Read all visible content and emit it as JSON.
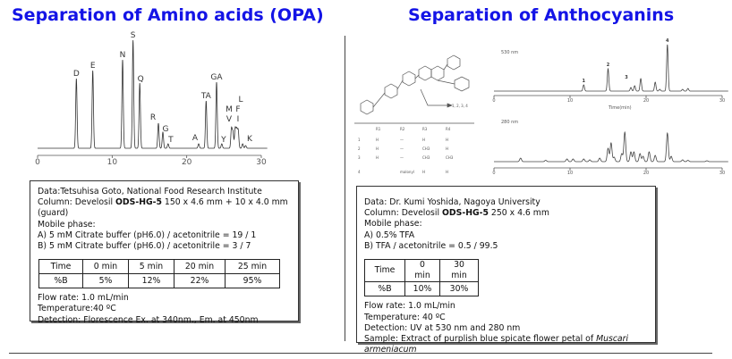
{
  "titles": {
    "left": "Separation of Amino acids (OPA)",
    "right": "Separation of Anthocyanins"
  },
  "left_box": {
    "data": "Data:Tetsuhisa Goto, National Food Research Institute",
    "column_prefix": "Column: Develosil ",
    "column_bold": "ODS-HG-5",
    "column_suffix": " 150 x 4.6 mm + 10 x 4.0 mm (guard)",
    "mobile": "Mobile phase:",
    "a": "A) 5 mM Citrate buffer (pH6.0) / acetonitrile = 19 / 1",
    "b": "B) 5 mM Citrate buffer (pH6.0) / acetonitrile = 3 / 7",
    "table": [
      [
        "Time",
        "0 min",
        "5 min",
        "20 min",
        "25 min"
      ],
      [
        "%B",
        "5%",
        "12%",
        "22%",
        "95%"
      ]
    ],
    "flow": "Flow rate: 1.0 mL/min",
    "temp": "Temperature:40 ºC",
    "detection": "Detection: Florescence Ex. at 340nm., Em. at 450nm"
  },
  "right_box": {
    "data": "Data: Dr. Kumi Yoshida, Nagoya University",
    "column_prefix": "Column: Develosil ",
    "column_bold": "ODS-HG-5",
    "column_suffix": " 250 x 4.6 mm",
    "mobile": "Mobile phase:",
    "a": "A) 0.5% TFA",
    "b": "B) TFA / acetonitrile = 0.5 / 99.5",
    "table": [
      [
        "Time",
        "0 min",
        "30 min"
      ],
      [
        "%B",
        "10%",
        "30%"
      ]
    ],
    "flow": "Flow rate: 1.0 mL/min",
    "temp": "Temperature: 40 ºC",
    "detection": "Detection: UV at 530 nm and 280 nm",
    "sample_prefix": "Sample: Extract of purplish blue spicate flower petal of ",
    "sample_italic": "Muscari armeniacum"
  },
  "structure": {
    "arrow_label": "1, 2, 3, 4",
    "table_headers": [
      "R1",
      "R2",
      "R3",
      "R4"
    ],
    "rows": [
      [
        "1",
        "H",
        "—",
        "H",
        "H"
      ],
      [
        "2",
        "H",
        "—",
        "CH3",
        "H"
      ],
      [
        "3",
        "H",
        "—",
        "CH3",
        "CH3"
      ],
      [
        "4",
        "",
        "malonyl",
        "H",
        "H"
      ]
    ]
  },
  "chart_data": [
    {
      "type": "line",
      "title": "",
      "xlim": [
        0,
        30
      ],
      "xticks": [
        0,
        10,
        20,
        30
      ],
      "xlabel": "",
      "peaks": [
        {
          "t": 5.2,
          "h": 78,
          "label": "D"
        },
        {
          "t": 7.4,
          "h": 87,
          "label": "E"
        },
        {
          "t": 11.4,
          "h": 99,
          "label": "N"
        },
        {
          "t": 12.8,
          "h": 121,
          "label": "S"
        },
        {
          "t": 13.7,
          "h": 73,
          "label": "Q"
        },
        {
          "t": 16.2,
          "h": 28,
          "label": "R"
        },
        {
          "t": 16.8,
          "h": 18,
          "label": "G"
        },
        {
          "t": 17.5,
          "h": 5,
          "label": "T"
        },
        {
          "t": 21.6,
          "h": 5,
          "label": "A"
        },
        {
          "t": 22.6,
          "h": 53,
          "label": "TA"
        },
        {
          "t": 24.0,
          "h": 74,
          "label": "GA"
        },
        {
          "t": 24.7,
          "h": 5,
          "label": "Y"
        },
        {
          "t": 26.0,
          "h": 22,
          "label": "V"
        },
        {
          "t": 26.2,
          "h": 18,
          "label": "M"
        },
        {
          "t": 26.5,
          "h": 22,
          "label": "F"
        },
        {
          "t": 26.7,
          "h": 20,
          "label": "I"
        },
        {
          "t": 26.9,
          "h": 20,
          "label": "L"
        },
        {
          "t": 27.5,
          "h": 5,
          "label": "K"
        },
        {
          "t": 27.9,
          "h": 3,
          "label": ""
        }
      ]
    },
    {
      "type": "line",
      "title": "530 nm",
      "xlim": [
        0,
        30
      ],
      "xticks": [
        0,
        10,
        20,
        30
      ],
      "xlabel": "Time(min)",
      "peaks": [
        {
          "t": 11.8,
          "h": 7,
          "label": "1"
        },
        {
          "t": 15.0,
          "h": 25,
          "label": "2"
        },
        {
          "t": 18.0,
          "h": 4,
          "label": "3"
        },
        {
          "t": 18.5,
          "h": 6,
          "label": ""
        },
        {
          "t": 19.3,
          "h": 14,
          "label": ""
        },
        {
          "t": 21.2,
          "h": 10,
          "label": ""
        },
        {
          "t": 21.8,
          "h": 2,
          "label": ""
        },
        {
          "t": 22.8,
          "h": 52,
          "label": "4"
        },
        {
          "t": 24.8,
          "h": 2,
          "label": ""
        },
        {
          "t": 25.5,
          "h": 3,
          "label": ""
        }
      ]
    },
    {
      "type": "line",
      "title": "280 nm",
      "xlim": [
        0,
        30
      ],
      "xticks": [
        0,
        10,
        20,
        30
      ],
      "xlabel": "",
      "peaks": [
        {
          "t": 3.5,
          "h": 4
        },
        {
          "t": 6.8,
          "h": 1.5
        },
        {
          "t": 9.6,
          "h": 3
        },
        {
          "t": 10.4,
          "h": 3
        },
        {
          "t": 11.8,
          "h": 3
        },
        {
          "t": 12.6,
          "h": 2
        },
        {
          "t": 13.9,
          "h": 4
        },
        {
          "t": 15.0,
          "h": 15
        },
        {
          "t": 15.4,
          "h": 21
        },
        {
          "t": 15.8,
          "h": 5
        },
        {
          "t": 16.8,
          "h": 9
        },
        {
          "t": 17.2,
          "h": 33
        },
        {
          "t": 18.0,
          "h": 11
        },
        {
          "t": 18.4,
          "h": 11
        },
        {
          "t": 19.2,
          "h": 9
        },
        {
          "t": 19.6,
          "h": 6
        },
        {
          "t": 20.4,
          "h": 11
        },
        {
          "t": 21.2,
          "h": 7
        },
        {
          "t": 22.8,
          "h": 32
        },
        {
          "t": 23.3,
          "h": 6
        },
        {
          "t": 24.8,
          "h": 2
        },
        {
          "t": 25.5,
          "h": 1.5
        },
        {
          "t": 28,
          "h": 1
        }
      ]
    }
  ]
}
